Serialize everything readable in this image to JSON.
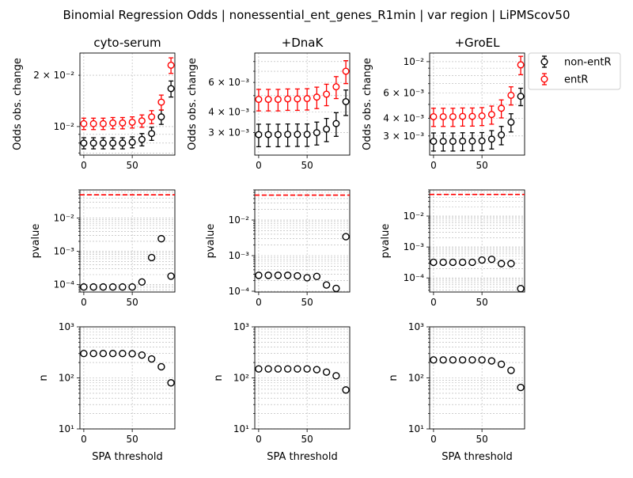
{
  "figure": {
    "suptitle": "Binomial Regression Odds | nonessential_ent_genes_R1min | var region | LiPMScov50",
    "legend": {
      "placement": "top-right, outside plots",
      "entries": [
        "non-entR",
        "entR"
      ]
    }
  },
  "colors": {
    "nonentr": "#000000",
    "entr": "#ff0000",
    "grid": "#b0b0b0",
    "ref_line": "#ff0000"
  },
  "chart_data": [
    {
      "type": "scatter",
      "panel": "odds",
      "column": 0,
      "title": "cyto-serum",
      "ylabel": "Odds obs. change",
      "xlabel": "",
      "yscale": "log",
      "ylim": [
        0.0068,
        0.027
      ],
      "xlim": [
        -4,
        94
      ],
      "xticks": [
        0,
        50
      ],
      "yticks": [
        {
          "v": 0.02,
          "label": "2 × 10⁻²"
        },
        {
          "v": 0.01,
          "label": "10⁻²"
        }
      ],
      "x": [
        0,
        10,
        20,
        30,
        40,
        50,
        60,
        70,
        80,
        90
      ],
      "series": [
        {
          "name": "non-entR",
          "y": [
            0.008,
            0.008,
            0.008,
            0.008,
            0.008,
            0.0081,
            0.0084,
            0.0091,
            0.0114,
            0.0167
          ],
          "err": [
            0.0006,
            0.0006,
            0.0006,
            0.0006,
            0.0006,
            0.0006,
            0.0007,
            0.0008,
            0.0011,
            0.0018
          ]
        },
        {
          "name": "entR",
          "y": [
            0.0104,
            0.0104,
            0.0104,
            0.0105,
            0.0105,
            0.0106,
            0.0108,
            0.0114,
            0.0139,
            0.0229
          ],
          "err": [
            0.0008,
            0.0008,
            0.0008,
            0.0008,
            0.0008,
            0.0008,
            0.0009,
            0.001,
            0.0014,
            0.0024
          ]
        }
      ]
    },
    {
      "type": "scatter",
      "panel": "odds",
      "column": 1,
      "title": "+DnaK",
      "ylabel": "Odds obs. change",
      "xlabel": "",
      "yscale": "log",
      "ylim": [
        0.0022,
        0.009
      ],
      "xlim": [
        -4,
        94
      ],
      "xticks": [
        0,
        50
      ],
      "yticks": [
        {
          "v": 0.006,
          "label": "6 × 10⁻³"
        },
        {
          "v": 0.004,
          "label": "4 × 10⁻³"
        },
        {
          "v": 0.003,
          "label": "3 × 10⁻³"
        }
      ],
      "x": [
        0,
        10,
        20,
        30,
        40,
        50,
        60,
        70,
        80,
        90
      ],
      "series": [
        {
          "name": "non-entR",
          "y": [
            0.00292,
            0.00292,
            0.00292,
            0.00293,
            0.00293,
            0.00293,
            0.003,
            0.00315,
            0.0034,
            0.0046
          ],
          "err": [
            0.00045,
            0.00045,
            0.00045,
            0.00045,
            0.00045,
            0.00045,
            0.00047,
            0.0005,
            0.00055,
            0.0008
          ]
        },
        {
          "name": "entR",
          "y": [
            0.00475,
            0.00475,
            0.00475,
            0.00478,
            0.00478,
            0.0048,
            0.0049,
            0.0051,
            0.00565,
            0.007
          ],
          "err": [
            0.0007,
            0.0007,
            0.0007,
            0.0007,
            0.0007,
            0.0007,
            0.00072,
            0.00075,
            0.00085,
            0.0011
          ]
        }
      ]
    },
    {
      "type": "scatter",
      "panel": "odds",
      "column": 2,
      "title": "+GroEL",
      "ylabel": "Odds obs. change",
      "xlabel": "",
      "yscale": "log",
      "ylim": [
        0.0022,
        0.0115
      ],
      "xlim": [
        -4,
        94
      ],
      "xticks": [
        0,
        50
      ],
      "yticks": [
        {
          "v": 0.01,
          "label": "10⁻²"
        },
        {
          "v": 0.006,
          "label": "6 × 10⁻³"
        },
        {
          "v": 0.004,
          "label": "4 × 10⁻³"
        },
        {
          "v": 0.003,
          "label": "3 × 10⁻³"
        }
      ],
      "x": [
        0,
        10,
        20,
        30,
        40,
        50,
        60,
        70,
        80,
        90
      ],
      "series": [
        {
          "name": "non-entR",
          "y": [
            0.00275,
            0.00275,
            0.00275,
            0.00276,
            0.00276,
            0.00277,
            0.00285,
            0.00305,
            0.00375,
            0.0057
          ],
          "err": [
            0.0004,
            0.0004,
            0.0004,
            0.0004,
            0.0004,
            0.0004,
            0.00042,
            0.00045,
            0.00055,
            0.0008
          ]
        },
        {
          "name": "entR",
          "y": [
            0.0041,
            0.0041,
            0.0041,
            0.00412,
            0.00412,
            0.00415,
            0.00425,
            0.0047,
            0.0058,
            0.0095
          ],
          "err": [
            0.0006,
            0.0006,
            0.0006,
            0.0006,
            0.0006,
            0.0006,
            0.00062,
            0.00068,
            0.00085,
            0.0014
          ]
        }
      ]
    },
    {
      "type": "scatter",
      "panel": "pvalue",
      "column": 0,
      "title": "",
      "ylabel": "pvalue",
      "xlabel": "",
      "yscale": "log",
      "ylim": [
        6e-05,
        0.07
      ],
      "xlim": [
        -4,
        94
      ],
      "xticks": [
        0,
        50
      ],
      "yticks": [
        {
          "v": 0.01,
          "label": "10⁻²"
        },
        {
          "v": 0.001,
          "label": "10⁻³"
        },
        {
          "v": 0.0001,
          "label": "10⁻⁴"
        }
      ],
      "ref_line": 0.05,
      "x": [
        0,
        10,
        20,
        30,
        40,
        50,
        60,
        70,
        80,
        90
      ],
      "values": [
        8.5e-05,
        8.5e-05,
        8.5e-05,
        8.5e-05,
        8.5e-05,
        8.5e-05,
        0.00012,
        0.00065,
        0.0024,
        0.00018
      ]
    },
    {
      "type": "scatter",
      "panel": "pvalue",
      "column": 1,
      "title": "",
      "ylabel": "pvalue",
      "xlabel": "",
      "yscale": "log",
      "ylim": [
        9.5e-05,
        0.07
      ],
      "xlim": [
        -4,
        94
      ],
      "xticks": [
        0,
        50
      ],
      "yticks": [
        {
          "v": 0.01,
          "label": "10⁻²"
        },
        {
          "v": 0.001,
          "label": "10⁻³"
        },
        {
          "v": 0.0001,
          "label": "10⁻⁴"
        }
      ],
      "ref_line": 0.05,
      "x": [
        0,
        10,
        20,
        30,
        40,
        50,
        60,
        70,
        80,
        90
      ],
      "values": [
        0.00028,
        0.00028,
        0.00028,
        0.00028,
        0.00027,
        0.00024,
        0.00026,
        0.00015,
        0.00012,
        0.0034
      ]
    },
    {
      "type": "scatter",
      "panel": "pvalue",
      "column": 2,
      "title": "",
      "ylabel": "pvalue",
      "xlabel": "",
      "yscale": "log",
      "ylim": [
        3.5e-05,
        0.07
      ],
      "xlim": [
        -4,
        94
      ],
      "xticks": [
        0,
        50
      ],
      "yticks": [
        {
          "v": 0.01,
          "label": "10⁻²"
        },
        {
          "v": 0.001,
          "label": "10⁻³"
        },
        {
          "v": 0.0001,
          "label": "10⁻⁴"
        }
      ],
      "ref_line": 0.05,
      "x": [
        0,
        10,
        20,
        30,
        40,
        50,
        60,
        70,
        80,
        90
      ],
      "values": [
        0.00032,
        0.00032,
        0.00032,
        0.00032,
        0.00032,
        0.00038,
        0.0004,
        0.00029,
        0.00029,
        4.5e-05
      ]
    },
    {
      "type": "scatter",
      "panel": "n",
      "column": 0,
      "title": "",
      "ylabel": "n",
      "xlabel": "SPA threshold",
      "yscale": "log",
      "ylim": [
        10,
        1000
      ],
      "xlim": [
        -4,
        94
      ],
      "xticks": [
        0,
        50
      ],
      "yticks": [
        {
          "v": 1000,
          "label": "10³"
        },
        {
          "v": 100,
          "label": "10²"
        },
        {
          "v": 10,
          "label": "10¹"
        }
      ],
      "x": [
        0,
        10,
        20,
        30,
        40,
        50,
        60,
        70,
        80,
        90
      ],
      "values": [
        300,
        300,
        300,
        300,
        300,
        298,
        280,
        235,
        165,
        80
      ]
    },
    {
      "type": "scatter",
      "panel": "n",
      "column": 1,
      "title": "",
      "ylabel": "n",
      "xlabel": "SPA threshold",
      "yscale": "log",
      "ylim": [
        10,
        1000
      ],
      "xlim": [
        -4,
        94
      ],
      "xticks": [
        0,
        50
      ],
      "yticks": [
        {
          "v": 1000,
          "label": "10³"
        },
        {
          "v": 100,
          "label": "10²"
        },
        {
          "v": 10,
          "label": "10¹"
        }
      ],
      "x": [
        0,
        10,
        20,
        30,
        40,
        50,
        60,
        70,
        80,
        90
      ],
      "values": [
        150,
        150,
        150,
        150,
        150,
        150,
        145,
        130,
        110,
        58
      ]
    },
    {
      "type": "scatter",
      "panel": "n",
      "column": 2,
      "title": "",
      "ylabel": "n",
      "xlabel": "SPA threshold",
      "yscale": "log",
      "ylim": [
        10,
        1000
      ],
      "xlim": [
        -4,
        94
      ],
      "xticks": [
        0,
        50
      ],
      "yticks": [
        {
          "v": 1000,
          "label": "10³"
        },
        {
          "v": 100,
          "label": "10²"
        },
        {
          "v": 10,
          "label": "10¹"
        }
      ],
      "x": [
        0,
        10,
        20,
        30,
        40,
        50,
        60,
        70,
        80,
        90
      ],
      "values": [
        225,
        225,
        225,
        225,
        225,
        225,
        215,
        185,
        140,
        65
      ]
    }
  ]
}
